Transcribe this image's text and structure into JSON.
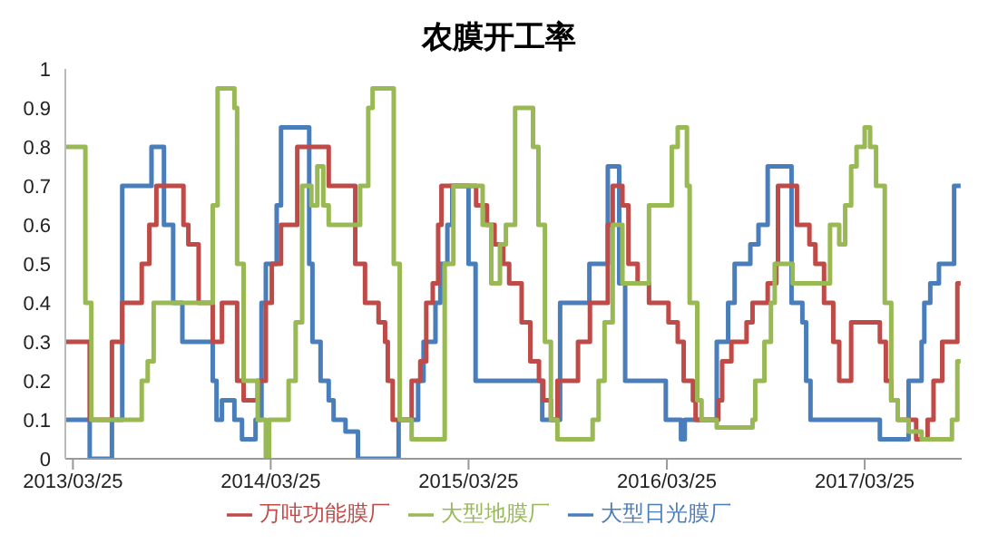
{
  "chart_data": {
    "type": "step",
    "title": "农膜开工率",
    "xlim": [
      "2013-03-11",
      "2017-09-20"
    ],
    "xticks": [
      {
        "value": "2013-03-25",
        "label": "2013/03/25"
      },
      {
        "value": "2014-03-25",
        "label": "2014/03/25"
      },
      {
        "value": "2015-03-25",
        "label": "2015/03/25"
      },
      {
        "value": "2016-03-25",
        "label": "2016/03/25"
      },
      {
        "value": "2017-03-25",
        "label": "2017/03/25"
      }
    ],
    "ylim": [
      0,
      1
    ],
    "yticks": [
      0,
      0.1,
      0.2,
      0.3,
      0.4,
      0.5,
      0.6,
      0.7,
      0.8,
      0.9,
      1
    ],
    "grid": false,
    "legend": "bottom",
    "marker": "none",
    "line_style": "solid",
    "series": [
      {
        "name": "大型日光膜厂",
        "color": "#4a7ebb",
        "x": [
          "2013-03-11",
          "2013-04-25",
          "2013-06-05",
          "2013-06-24",
          "2013-08-17",
          "2013-09-09",
          "2013-09-26",
          "2013-10-13",
          "2013-12-08",
          "2013-12-15",
          "2013-12-25",
          "2014-01-17",
          "2014-01-31",
          "2014-02-25",
          "2014-03-08",
          "2014-03-16",
          "2014-04-05",
          "2014-04-13",
          "2014-06-04",
          "2014-06-10",
          "2014-06-25",
          "2014-07-10",
          "2014-07-19",
          "2014-08-10",
          "2014-09-02",
          "2014-11-16",
          "2014-12-22",
          "2015-01-01",
          "2015-01-23",
          "2015-02-01",
          "2015-02-14",
          "2015-02-23",
          "2015-03-25",
          "2015-04-07",
          "2015-08-08",
          "2015-09-10",
          "2015-11-03",
          "2015-12-07",
          "2015-12-28",
          "2016-01-08",
          "2016-03-23",
          "2016-04-20",
          "2016-04-27",
          "2016-06-25",
          "2016-07-16",
          "2016-07-28",
          "2016-08-26",
          "2016-09-10",
          "2016-09-27",
          "2016-11-10",
          "2016-11-30",
          "2016-12-07",
          "2016-12-15",
          "2017-04-22",
          "2017-06-14",
          "2017-07-08",
          "2017-07-13",
          "2017-07-24",
          "2017-08-09",
          "2017-09-06",
          "2017-09-18"
        ],
        "values": [
          0.1,
          0,
          0.1,
          0.7,
          0.8,
          0.6,
          0.4,
          0.3,
          0.2,
          0.1,
          0.15,
          0.1,
          0.05,
          0.1,
          0.4,
          0.5,
          0.65,
          0.85,
          0.5,
          0.3,
          0.2,
          0.15,
          0.1,
          0.07,
          0,
          0.1,
          0.2,
          0.3,
          0.4,
          0.5,
          0.6,
          0.7,
          0.5,
          0.2,
          0.1,
          0.4,
          0.5,
          0.75,
          0.45,
          0.2,
          0.1,
          0.05,
          0.1,
          0.3,
          0.4,
          0.5,
          0.55,
          0.6,
          0.75,
          0.4,
          0.35,
          0.2,
          0.1,
          0.05,
          0.2,
          0.3,
          0.4,
          0.45,
          0.5,
          0.7,
          0.7
        ]
      },
      {
        "name": "万吨功能膜厂",
        "color": "#be4b48",
        "x": [
          "2013-03-11",
          "2013-04-25",
          "2013-06-05",
          "2013-06-24",
          "2013-07-30",
          "2013-08-13",
          "2013-08-26",
          "2013-10-15",
          "2013-10-24",
          "2013-11-12",
          "2013-12-08",
          "2013-12-25",
          "2014-01-22",
          "2014-02-03",
          "2014-03-01",
          "2014-03-16",
          "2014-03-27",
          "2014-04-13",
          "2014-05-13",
          "2014-07-10",
          "2014-08-28",
          "2014-09-15",
          "2014-10-10",
          "2014-10-22",
          "2014-10-27",
          "2014-11-05",
          "2014-12-10",
          "2014-12-26",
          "2015-01-06",
          "2015-01-18",
          "2015-01-28",
          "2015-02-03",
          "2015-04-08",
          "2015-04-28",
          "2015-05-12",
          "2015-05-28",
          "2015-06-08",
          "2015-07-01",
          "2015-07-17",
          "2015-08-02",
          "2015-08-10",
          "2015-08-24",
          "2015-09-05",
          "2015-10-13",
          "2015-11-04",
          "2015-12-07",
          "2015-12-16",
          "2016-01-03",
          "2016-01-14",
          "2016-01-31",
          "2016-02-21",
          "2016-03-28",
          "2016-04-14",
          "2016-04-25",
          "2016-05-12",
          "2016-05-17",
          "2016-06-28",
          "2016-07-05",
          "2016-07-22",
          "2016-08-19",
          "2016-08-30",
          "2016-09-27",
          "2016-10-13",
          "2016-10-16",
          "2016-11-20",
          "2016-12-13",
          "2016-12-24",
          "2017-01-09",
          "2017-01-26",
          "2017-02-06",
          "2017-02-28",
          "2017-04-22",
          "2017-05-03",
          "2017-05-13",
          "2017-05-25",
          "2017-06-28",
          "2017-07-19",
          "2017-07-30",
          "2017-08-15",
          "2017-09-12",
          "2017-09-18"
        ],
        "values": [
          0.3,
          0.1,
          0.3,
          0.4,
          0.5,
          0.6,
          0.7,
          0.6,
          0.55,
          0.4,
          0.3,
          0.4,
          0.2,
          0.15,
          0.2,
          0.4,
          0.5,
          0.6,
          0.8,
          0.7,
          0.5,
          0.4,
          0.35,
          0.3,
          0.2,
          0.1,
          0.2,
          0.25,
          0.4,
          0.45,
          0.6,
          0.7,
          0.65,
          0.6,
          0.55,
          0.5,
          0.45,
          0.35,
          0.25,
          0.2,
          0.15,
          0.1,
          0.2,
          0.3,
          0.4,
          0.6,
          0.7,
          0.65,
          0.5,
          0.45,
          0.4,
          0.35,
          0.3,
          0.2,
          0.15,
          0.1,
          0.15,
          0.25,
          0.3,
          0.35,
          0.4,
          0.45,
          0.5,
          0.7,
          0.6,
          0.55,
          0.5,
          0.4,
          0.3,
          0.2,
          0.35,
          0.3,
          0.2,
          0.15,
          0.1,
          0.05,
          0.1,
          0.2,
          0.3,
          0.45,
          0.45
        ]
      },
      {
        "name": "大型地膜厂",
        "color": "#98b954",
        "x": [
          "2013-03-11",
          "2013-04-17",
          "2013-04-28",
          "2013-07-30",
          "2013-08-10",
          "2013-08-21",
          "2013-12-08",
          "2013-12-17",
          "2014-01-17",
          "2014-01-22",
          "2014-02-03",
          "2014-03-01",
          "2014-03-16",
          "2014-03-22",
          "2014-04-27",
          "2014-05-10",
          "2014-05-22",
          "2014-06-08",
          "2014-06-19",
          "2014-06-30",
          "2014-07-10",
          "2014-09-06",
          "2014-09-21",
          "2014-09-29",
          "2014-11-07",
          "2014-11-18",
          "2014-12-10",
          "2015-02-09",
          "2015-02-25",
          "2015-04-20",
          "2015-05-06",
          "2015-05-22",
          "2015-06-02",
          "2015-06-19",
          "2015-07-22",
          "2015-08-01",
          "2015-08-13",
          "2015-08-24",
          "2015-09-05",
          "2015-11-09",
          "2015-11-20",
          "2015-12-01",
          "2015-12-16",
          "2016-01-03",
          "2016-02-21",
          "2016-04-03",
          "2016-04-14",
          "2016-05-01",
          "2016-05-06",
          "2016-05-20",
          "2016-05-28",
          "2016-06-25",
          "2016-08-30",
          "2016-09-04",
          "2016-09-21",
          "2016-10-03",
          "2016-10-10",
          "2016-11-12",
          "2017-01-20",
          "2017-02-06",
          "2017-02-17",
          "2017-02-28",
          "2017-03-10",
          "2017-03-25",
          "2017-04-04",
          "2017-04-15",
          "2017-05-01",
          "2017-05-13",
          "2017-05-25",
          "2017-06-14",
          "2017-07-08",
          "2017-09-02",
          "2017-09-12",
          "2017-09-18"
        ],
        "values": [
          0.8,
          0.4,
          0.1,
          0.2,
          0.25,
          0.4,
          0.65,
          0.95,
          0.9,
          0.5,
          0.2,
          0.1,
          0,
          0.1,
          0.2,
          0.35,
          0.7,
          0.65,
          0.75,
          0.65,
          0.6,
          0.7,
          0.9,
          0.95,
          0.5,
          0.1,
          0.05,
          0.5,
          0.7,
          0.6,
          0.45,
          0.55,
          0.6,
          0.9,
          0.8,
          0.6,
          0.3,
          0.1,
          0.05,
          0.1,
          0.2,
          0.35,
          0.6,
          0.45,
          0.65,
          0.8,
          0.85,
          0.7,
          0.4,
          0.15,
          0.1,
          0.08,
          0.1,
          0.2,
          0.3,
          0.4,
          0.5,
          0.45,
          0.6,
          0.55,
          0.65,
          0.75,
          0.8,
          0.85,
          0.8,
          0.7,
          0.4,
          0.15,
          0.1,
          0.07,
          0.05,
          0.1,
          0.25,
          0.25
        ]
      }
    ]
  }
}
